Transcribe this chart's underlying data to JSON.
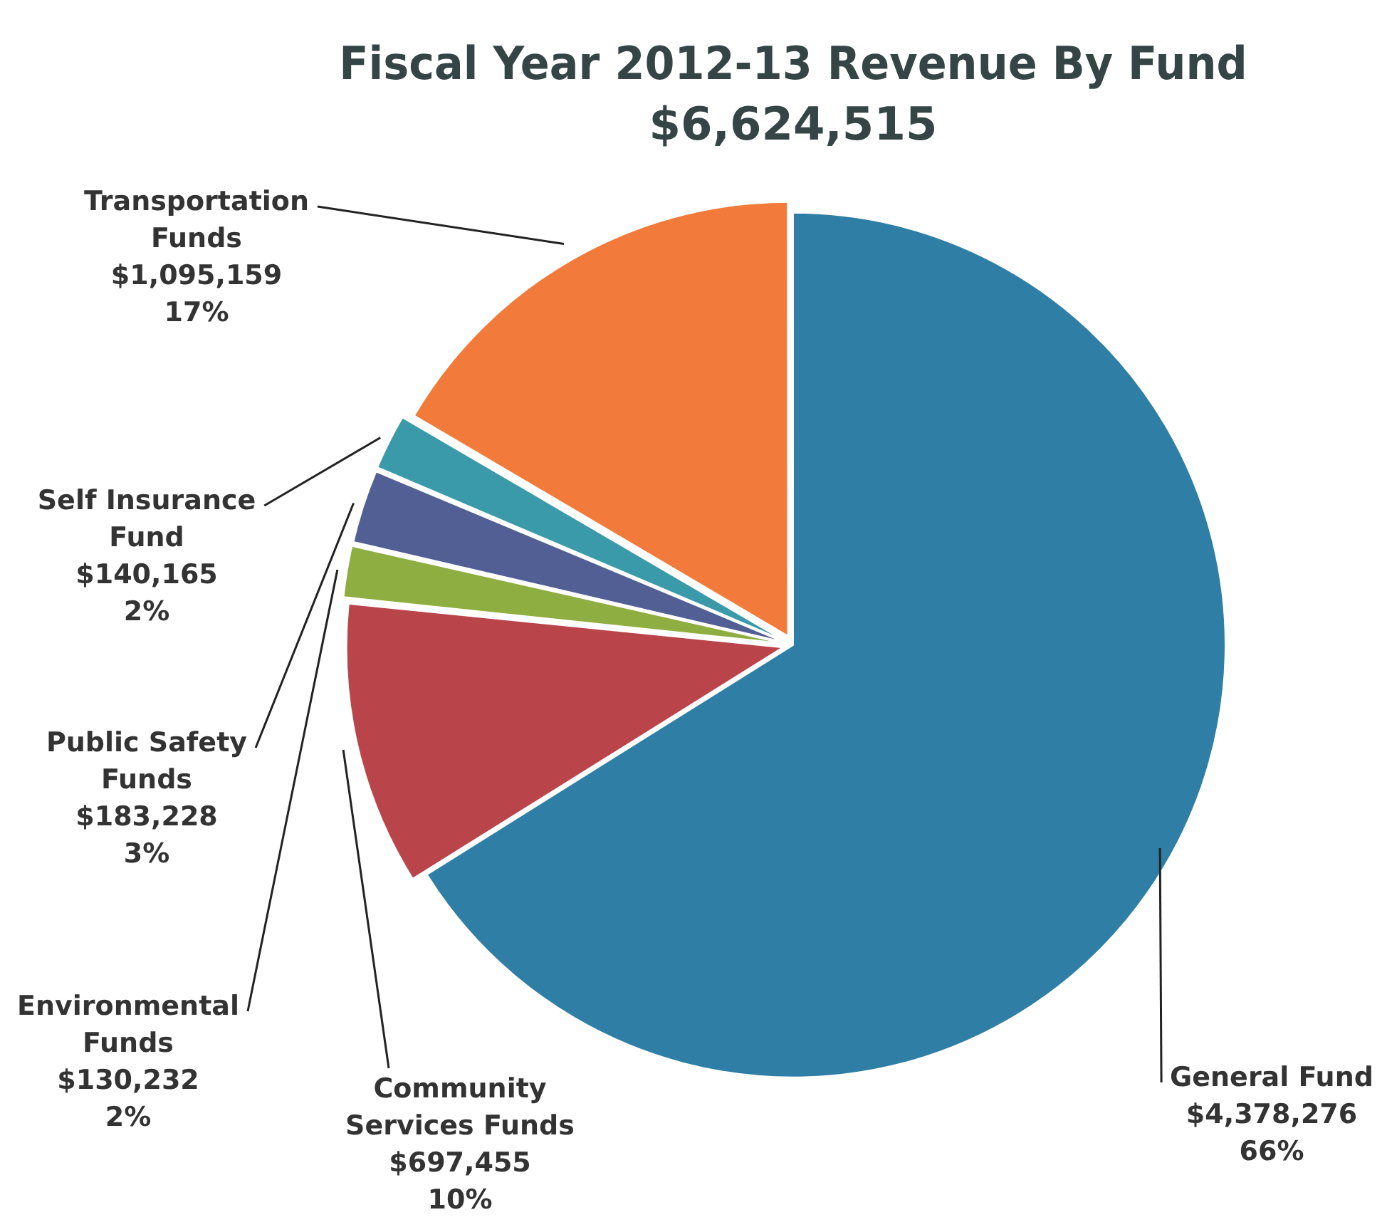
{
  "chart_data": {
    "type": "pie",
    "title": "Fiscal Year 2012-13 Revenue By Fund",
    "subtitle": "$6,624,515",
    "categories": [
      "General Fund",
      "Community Services Funds",
      "Environmental Funds",
      "Public Safety Funds",
      "Self Insurance Fund",
      "Transportation Funds"
    ],
    "values": [
      4378276,
      697455,
      130232,
      183228,
      140165,
      1095159
    ],
    "colors": [
      "#2f7ea6",
      "#b9454b",
      "#8fae42",
      "#515f94",
      "#3b9aa9",
      "#f27b3b"
    ],
    "value_labels": [
      "$4,378,276\n66%",
      "$697,455\n10%",
      "$130,232\n2%",
      "$183,228\n3%",
      "$140,165\n2%",
      "$1,095,159\n17%"
    ],
    "legend": false
  }
}
